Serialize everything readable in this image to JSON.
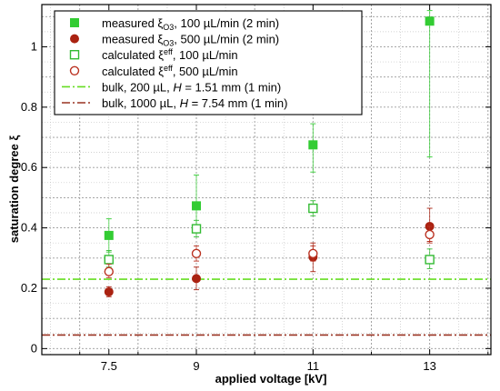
{
  "chart_data": {
    "type": "scatter",
    "xlabel": "applied voltage [kV]",
    "ylabel": "saturation degree ξ",
    "xlim": [
      6.35,
      14.05
    ],
    "ylim": [
      -0.02,
      1.14
    ],
    "x_ticks": [
      7.5,
      9,
      11,
      13
    ],
    "x_tick_labels": [
      "7.5",
      "9",
      "11",
      "13"
    ],
    "y_ticks": [
      0,
      0.2,
      0.4,
      0.6,
      0.8,
      1
    ],
    "y_tick_labels": [
      "0",
      "0.2",
      "0.4",
      "0.6",
      "0.8",
      "1"
    ],
    "grid": true,
    "legend_position": "top-left",
    "series": [
      {
        "name": "measured ξO3, 100 µL/min (2 min)",
        "legend_main": "measured ξ",
        "legend_sub": "O3",
        "legend_rest": ", 100 µL/min (2 min)",
        "marker": "filled-square",
        "color": "#33cc33",
        "x": [
          7.5,
          9,
          11,
          13
        ],
        "y": [
          0.375,
          0.473,
          0.675,
          1.085
        ],
        "err_low": [
          0.32,
          0.4,
          0.585,
          0.635
        ],
        "err_high": [
          0.43,
          0.575,
          0.745,
          1.12
        ]
      },
      {
        "name": "measured ξO3, 500 µL/min (2 min)",
        "legend_main": "measured ξ",
        "legend_sub": "O3",
        "legend_rest": ", 500 µL/min (2 min)",
        "marker": "filled-circle",
        "color": "#aa2211",
        "x": [
          7.5,
          9,
          11,
          13
        ],
        "y": [
          0.188,
          0.232,
          0.303,
          0.405
        ],
        "err_low": [
          0.172,
          0.195,
          0.255,
          0.355
        ],
        "err_high": [
          0.205,
          0.27,
          0.35,
          0.465
        ]
      },
      {
        "name": "calculated ξeff, 100 µL/min",
        "legend_main": "calculated ξ",
        "legend_sup": "eff",
        "legend_rest": ", 100 µL/min",
        "marker": "open-square",
        "color": "#33bb33",
        "x": [
          7.5,
          9,
          11,
          13
        ],
        "y": [
          0.295,
          0.397,
          0.465,
          0.295
        ],
        "err_low": [
          0.27,
          0.37,
          0.44,
          0.265
        ],
        "err_high": [
          0.325,
          0.425,
          0.49,
          0.33
        ]
      },
      {
        "name": "calculated ξeff, 500 µL/min",
        "legend_main": "calculated ξ",
        "legend_sup": "eff",
        "legend_rest": ", 500 µL/min",
        "marker": "open-circle",
        "color": "#bb3322",
        "x": [
          7.5,
          9,
          11,
          13
        ],
        "y": [
          0.255,
          0.315,
          0.315,
          0.378
        ],
        "err_low": [
          0.235,
          0.29,
          0.29,
          0.35
        ],
        "err_high": [
          0.28,
          0.34,
          0.34,
          0.405
        ]
      },
      {
        "name": "bulk, 200 µL, H = 1.51 mm (1 min)",
        "legend_main": "bulk, 200 µL, ",
        "legend_italic": "H",
        "legend_rest": " = 1.51 mm (1 min)",
        "marker": "dash-dot-line",
        "color": "#66dd22",
        "y": 0.23
      },
      {
        "name": "bulk, 1000 µL, H = 7.54 mm (1 min)",
        "legend_main": "bulk, 1000 µL, ",
        "legend_italic": "H",
        "legend_rest": " = 7.54 mm (1 min)",
        "marker": "dash-dot-line",
        "color": "#993322",
        "y": 0.045
      }
    ]
  }
}
